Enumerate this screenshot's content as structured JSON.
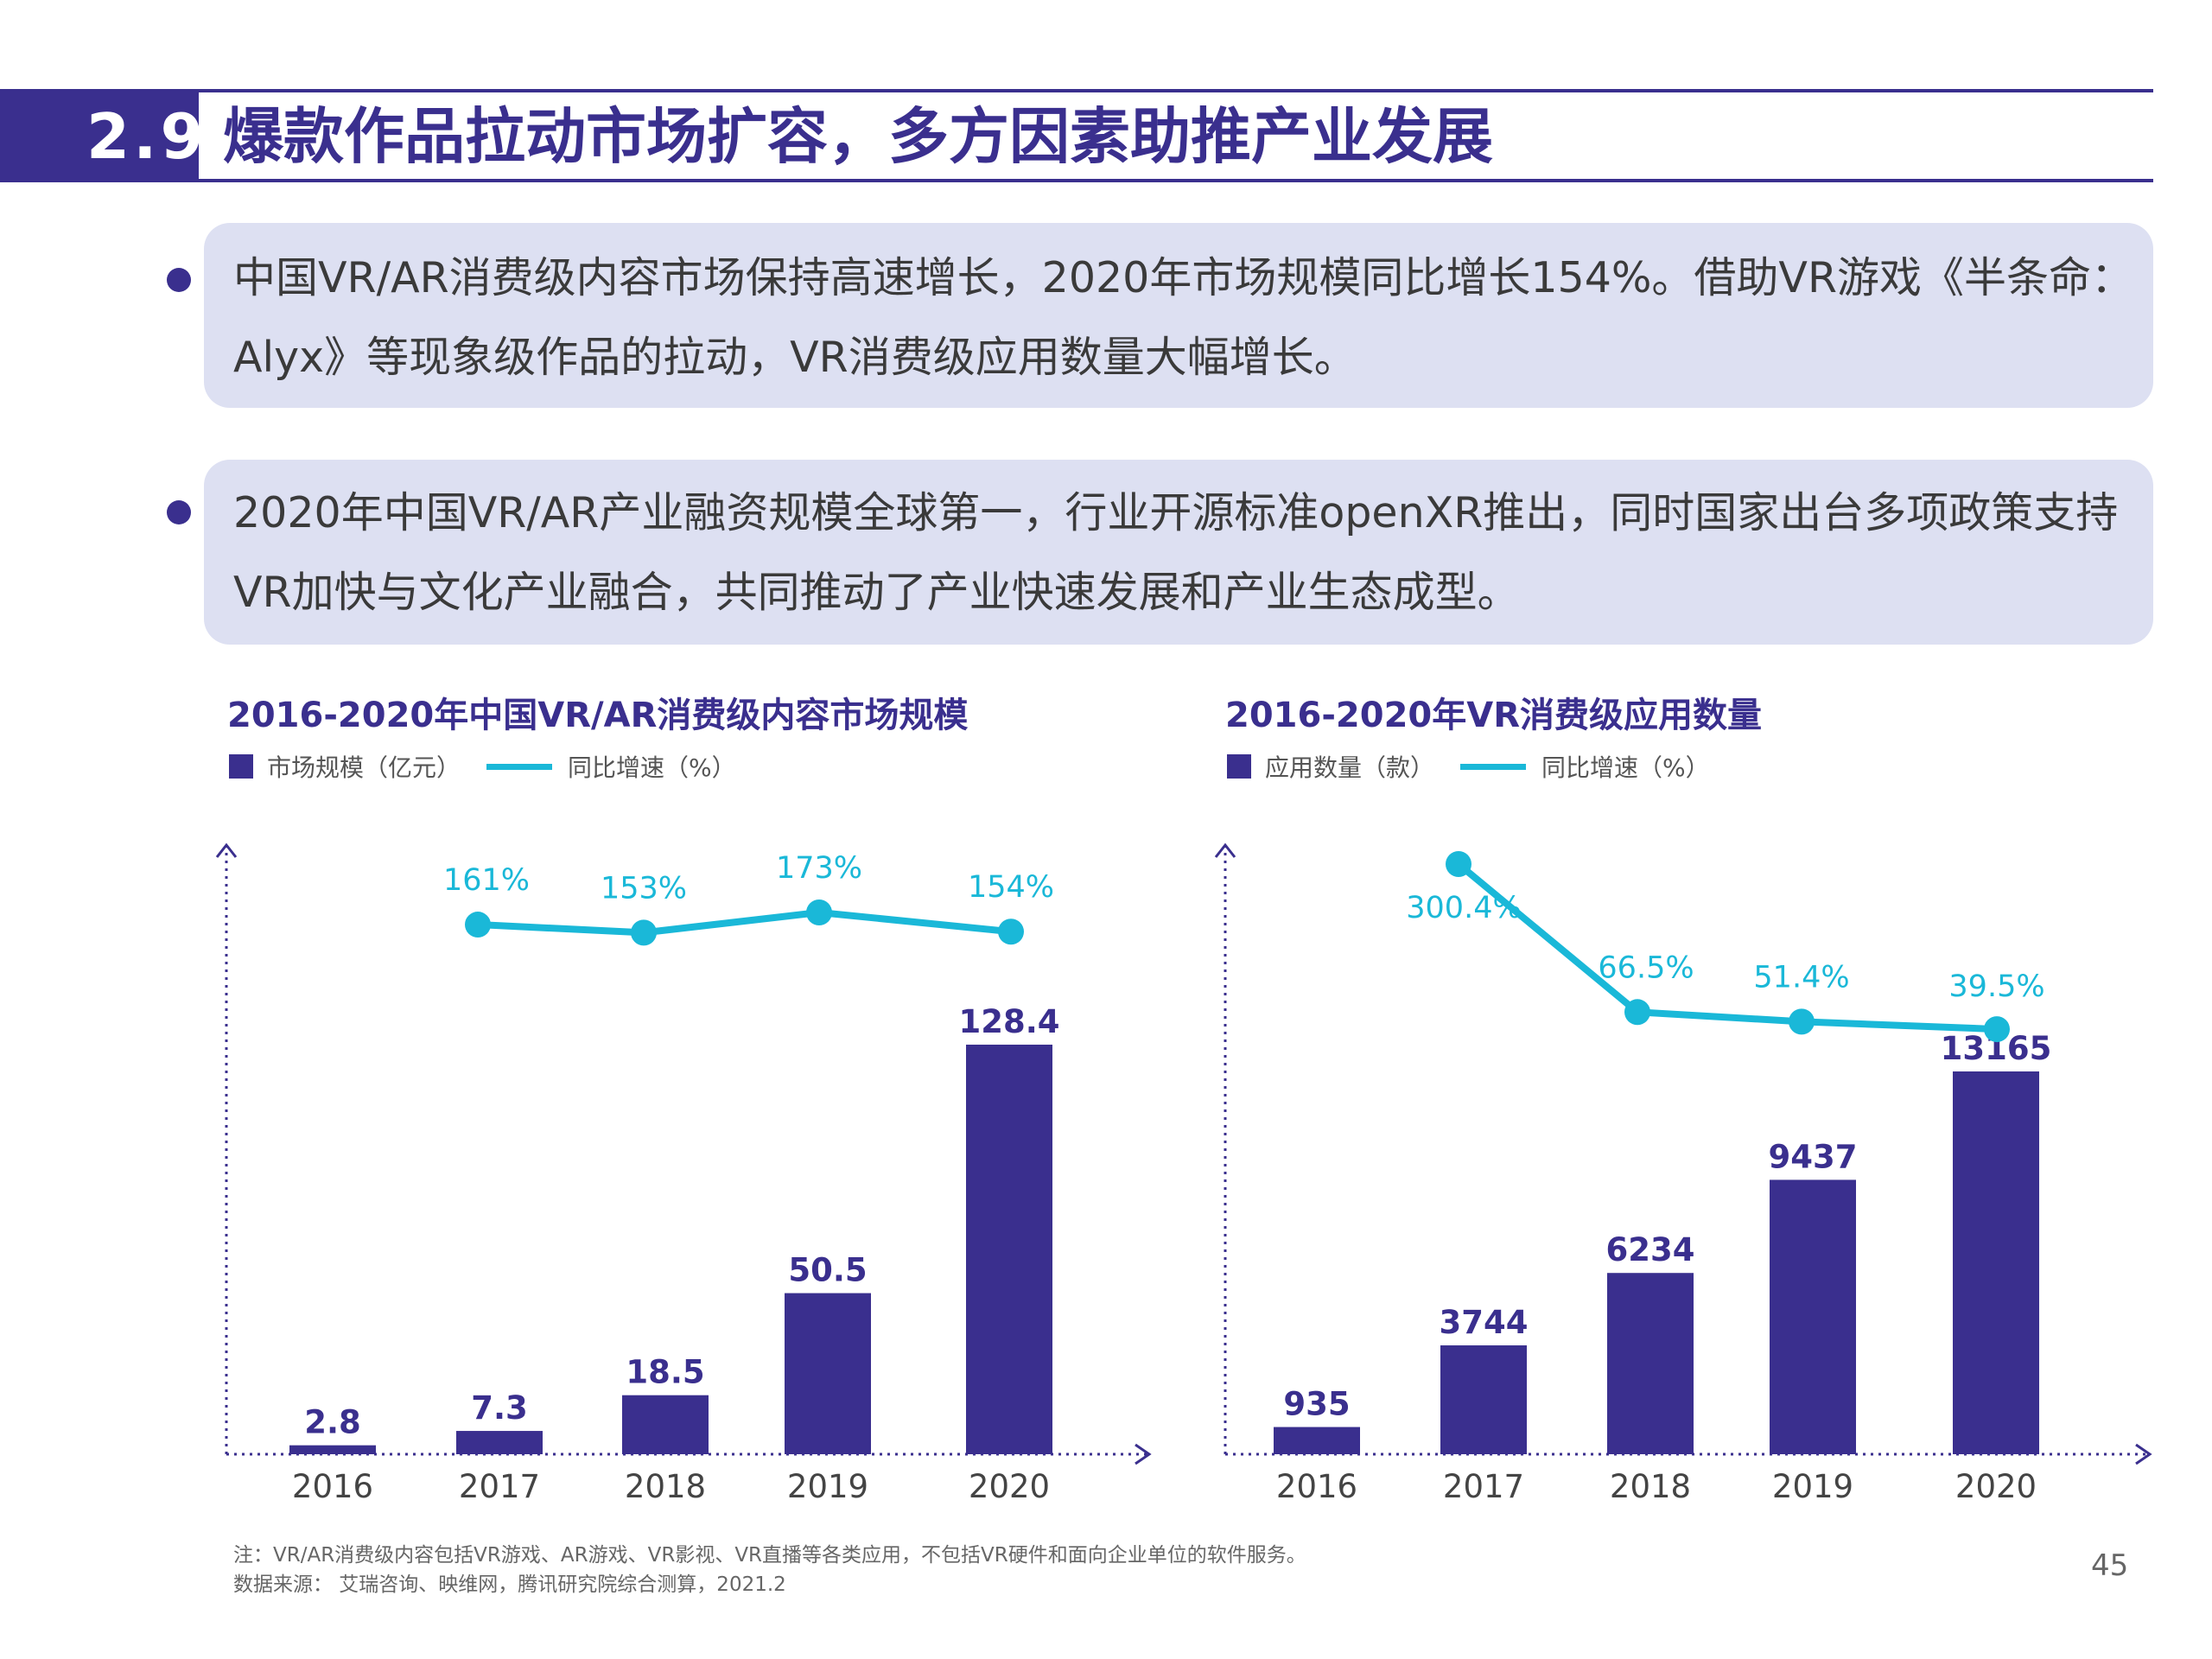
{
  "header": {
    "section_number": "2.9",
    "title": "爆款作品拉动市场扩容，多方因素助推产业发展"
  },
  "bullets": [
    {
      "text": "中国VR/AR消费级内容市场保持高速增长，2020年市场规模同比增长154%。借助VR游戏《半条命： Alyx》等现象级作品的拉动，VR消费级应用数量大幅增长。"
    },
    {
      "text": "2020年中国VR/AR产业融资规模全球第一，行业开源标准openXR推出，同时国家出台多项政策支持VR加快与文化产业融合，共同推动了产业快速发展和产业生态成型。"
    }
  ],
  "colors": {
    "bar": "#3a2f8e",
    "line": "#1ab8d8",
    "bubble": "#dde0f2",
    "axis": "#3a2f8e"
  },
  "chart_data": [
    {
      "type": "bar",
      "title": "2016-2020年中国VR/AR消费级内容市场规模",
      "legend_position": "top-left",
      "categories": [
        "2016",
        "2017",
        "2018",
        "2019",
        "2020"
      ],
      "series": [
        {
          "name": "市场规模（亿元）",
          "type": "bar",
          "values": [
            2.8,
            7.3,
            18.5,
            50.5,
            128.4
          ],
          "labels": [
            "2.8",
            "7.3",
            "18.5",
            "50.5",
            "128.4"
          ]
        },
        {
          "name": "同比增速（%）",
          "type": "line",
          "values": [
            null,
            161,
            153,
            173,
            154
          ],
          "labels": [
            "",
            "161%",
            "153%",
            "173%",
            "154%"
          ]
        }
      ],
      "ylim": [
        0,
        128.4
      ],
      "y2lim": [
        50,
        173
      ],
      "grid": false
    },
    {
      "type": "bar",
      "title": "2016-2020年VR消费级应用数量",
      "legend_position": "top-left",
      "categories": [
        "2016",
        "2017",
        "2018",
        "2019",
        "2020"
      ],
      "series": [
        {
          "name": "应用数量（款）",
          "type": "bar",
          "values": [
            935,
            3744,
            6234,
            9437,
            13165
          ],
          "labels": [
            "935",
            "3744",
            "6234",
            "9437",
            "13165"
          ]
        },
        {
          "name": "同比增速（%）",
          "type": "line",
          "values": [
            null,
            300.4,
            66.5,
            51.4,
            39.5
          ],
          "labels": [
            "",
            "300.4%",
            "66.5%",
            "51.4%",
            "39.5%"
          ]
        }
      ],
      "ylim": [
        0,
        13165
      ],
      "y2lim": [
        0,
        300.4
      ],
      "grid": false
    }
  ],
  "footnotes": {
    "note": "注：VR/AR消费级内容包括VR游戏、AR游戏、VR影视、VR直播等各类应用，不包括VR硬件和面向企业单位的软件服务。",
    "source": "数据来源： 艾瑞咨询、映维网，腾讯研究院综合测算，2021.2"
  },
  "page_number": "45"
}
